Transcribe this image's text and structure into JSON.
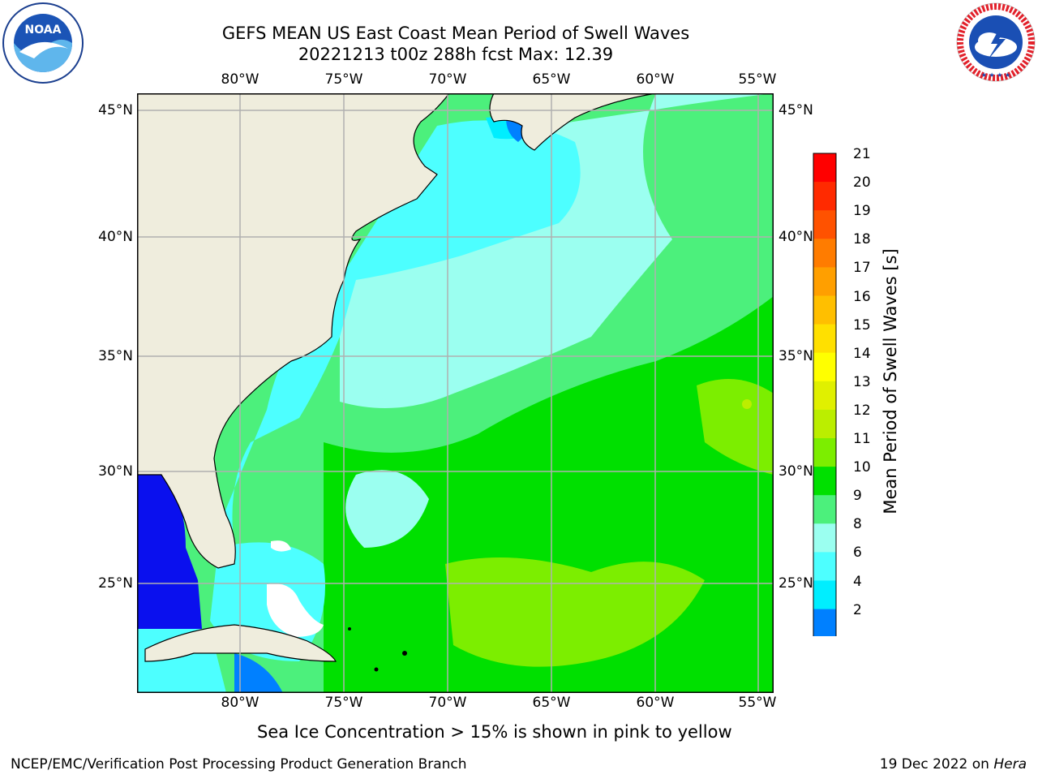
{
  "header": {
    "title_line1": "GEFS MEAN US East Coast Mean Period of Swell Waves",
    "title_line2": "20221213 t00z 288h fcst   Max: 12.39"
  },
  "logos": {
    "left": {
      "name": "noaa-logo",
      "text": "NOAA",
      "ring_text": "NATIONAL OCEANIC AND ATMOSPHERIC ADMINISTRATION · U.S. DEPARTMENT OF COMMERCE"
    },
    "right": {
      "name": "nws-logo",
      "ring_text": "NATIONAL WEATHER SERVICE"
    }
  },
  "map": {
    "lon_ticks": [
      "80°W",
      "75°W",
      "70°W",
      "65°W",
      "60°W",
      "55°W"
    ],
    "lat_ticks": [
      "45°N",
      "40°N",
      "35°N",
      "30°N",
      "25°N"
    ],
    "colors": {
      "land": "#efeddd",
      "grid": "#b0b0b0"
    }
  },
  "colorbar": {
    "label": "Mean Period of Swell Waves [s]",
    "ticks": [
      "21",
      "20",
      "19",
      "18",
      "17",
      "16",
      "15",
      "14",
      "13",
      "12",
      "11",
      "10",
      "9",
      "8",
      "6",
      "4",
      "2"
    ],
    "colors": [
      "#ff0000",
      "#ff2a00",
      "#ff5200",
      "#ff7c00",
      "#ff9f00",
      "#ffbf00",
      "#ffe000",
      "#ffff00",
      "#e0f000",
      "#bbee00",
      "#7cee00",
      "#00e000",
      "#4cf07c",
      "#9bfff0",
      "#4dffff",
      "#00eeff",
      "#0080ff"
    ],
    "extend_color": "#0a10ee"
  },
  "notes": {
    "sea_ice": "Sea Ice Concentration > 15% is shown in pink to yellow",
    "credit_left": "NCEP/EMC/Verification Post Processing Product Generation Branch",
    "credit_date": "19 Dec 2022 on ",
    "credit_machine": "Hera"
  }
}
